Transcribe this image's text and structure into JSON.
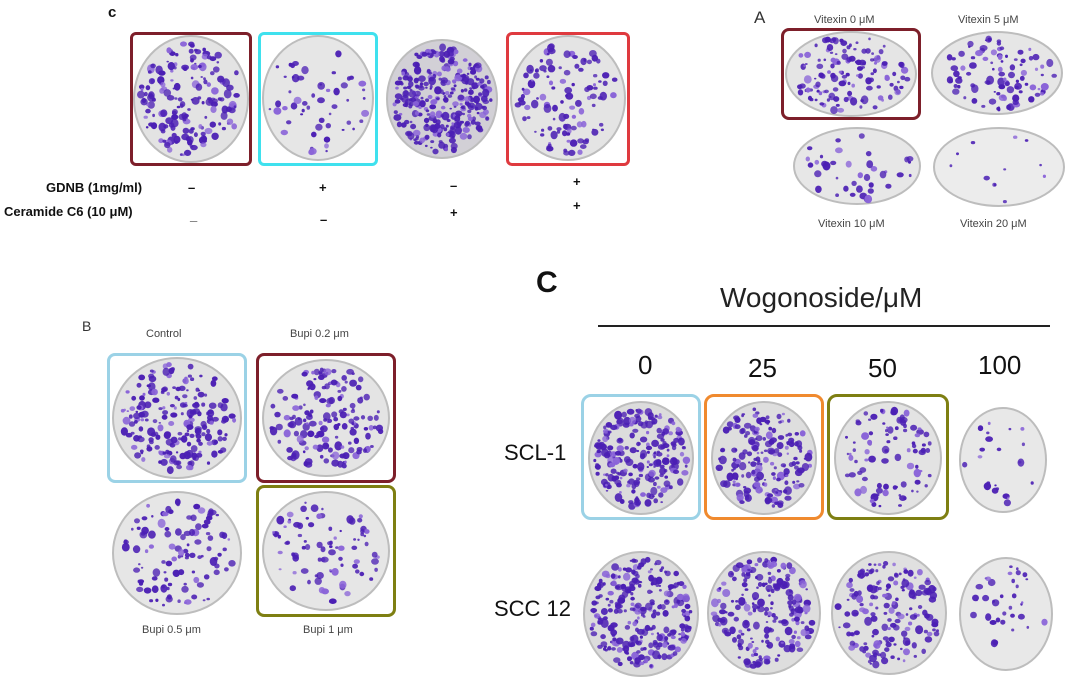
{
  "panel_c1": {
    "letter": "c",
    "rows": [
      {
        "label": "GDNB (1mg/ml)",
        "signs": [
          "–",
          "+",
          "–",
          "+"
        ]
      },
      {
        "label": "Ceramide C6 (10 μM)",
        "signs": [
          "_",
          "–",
          "+",
          "+"
        ]
      }
    ],
    "frame_colors": [
      "#7d1f2a",
      "#3fe1ee",
      "",
      "#df3a3f"
    ]
  },
  "panel_a": {
    "letter": "A",
    "labels": [
      "Vitexin 0 μM",
      "Vitexin 5 μM",
      "Vitexin 10 μM",
      "Vitexin 20 μM"
    ],
    "frame_color": "#7d1f2a"
  },
  "panel_b": {
    "letter": "B",
    "labels": [
      "Control",
      "Bupi 0.2 μm",
      "Bupi 0.5 μm",
      "Bupi 1 μm"
    ],
    "frame_colors": [
      "#9bd2e6",
      "#7d1f2a",
      "",
      "#7e7f12"
    ]
  },
  "panel_c2": {
    "letter": "C",
    "title": "Wogonoside/μM",
    "concentrations": [
      "0",
      "25",
      "50",
      "100"
    ],
    "rows": [
      "SCL-1",
      "SCC 12"
    ],
    "frame_colors": [
      "#9bd2e6",
      "#f08a2e",
      "#7e7f12"
    ]
  },
  "colors": {
    "colony": "#4b1fb4",
    "colony_light": "#8a64d8",
    "dish": "#e6e6e6",
    "dish_rim": "#bdbdbd"
  }
}
